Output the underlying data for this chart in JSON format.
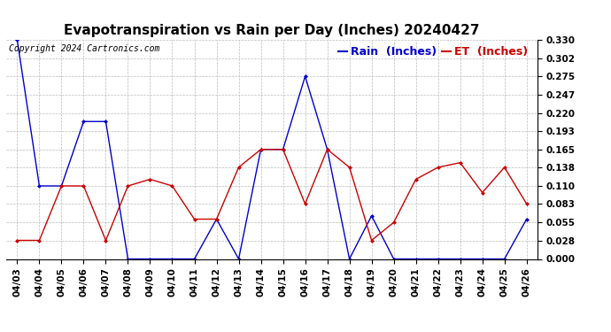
{
  "title": "Evapotranspiration vs Rain per Day (Inches) 20240427",
  "copyright": "Copyright 2024 Cartronics.com",
  "legend_rain": "Rain  (Inches)",
  "legend_et": "ET  (Inches)",
  "dates": [
    "04/03",
    "04/04",
    "04/05",
    "04/06",
    "04/07",
    "04/08",
    "04/09",
    "04/10",
    "04/11",
    "04/12",
    "04/13",
    "04/14",
    "04/15",
    "04/16",
    "04/17",
    "04/18",
    "04/19",
    "04/20",
    "04/21",
    "04/22",
    "04/23",
    "04/24",
    "04/25",
    "04/26"
  ],
  "rain": [
    0.33,
    0.11,
    0.11,
    0.207,
    0.207,
    0.0,
    0.0,
    0.0,
    0.0,
    0.06,
    0.0,
    0.165,
    0.165,
    0.275,
    0.165,
    0.0,
    0.065,
    0.0,
    0.0,
    0.0,
    0.0,
    0.0,
    0.0,
    0.06
  ],
  "et": [
    0.028,
    0.028,
    0.11,
    0.11,
    0.028,
    0.11,
    0.12,
    0.11,
    0.06,
    0.06,
    0.138,
    0.165,
    0.165,
    0.083,
    0.165,
    0.138,
    0.028,
    0.055,
    0.12,
    0.138,
    0.145,
    0.1,
    0.138,
    0.083
  ],
  "ylim": [
    0.0,
    0.33
  ],
  "yticks": [
    0.0,
    0.028,
    0.055,
    0.083,
    0.11,
    0.138,
    0.165,
    0.193,
    0.22,
    0.247,
    0.275,
    0.302,
    0.33
  ],
  "rain_color": "#0000cc",
  "et_color": "#cc0000",
  "grid_color": "#bbbbbb",
  "bg_color": "#ffffff",
  "title_fontsize": 11,
  "axis_fontsize": 7.5,
  "legend_fontsize": 9,
  "copyright_fontsize": 7
}
